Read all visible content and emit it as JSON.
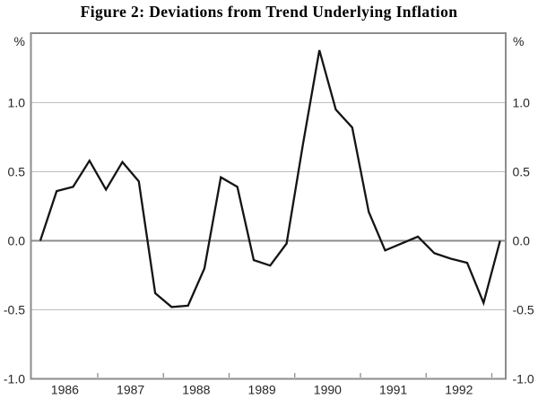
{
  "chart_data": {
    "type": "line",
    "title": "Figure 2: Deviations from Trend Underlying Inflation",
    "unit_label": "%",
    "x": [
      "1986Q1",
      "1986Q2",
      "1986Q3",
      "1986Q4",
      "1987Q1",
      "1987Q2",
      "1987Q3",
      "1987Q4",
      "1988Q1",
      "1988Q2",
      "1988Q3",
      "1988Q4",
      "1989Q1",
      "1989Q2",
      "1989Q3",
      "1989Q4",
      "1990Q1",
      "1990Q2",
      "1990Q3",
      "1990Q4",
      "1991Q1",
      "1991Q2",
      "1991Q3",
      "1991Q4",
      "1992Q1",
      "1992Q2",
      "1992Q3",
      "1992Q4",
      "1993Q1"
    ],
    "values": [
      0.0,
      0.36,
      0.39,
      0.58,
      0.37,
      0.57,
      0.43,
      -0.38,
      -0.48,
      -0.47,
      -0.2,
      0.46,
      0.39,
      -0.14,
      -0.18,
      -0.02,
      0.7,
      1.38,
      0.95,
      0.82,
      0.21,
      -0.07,
      -0.02,
      0.03,
      -0.09,
      -0.13,
      -0.16,
      -0.45,
      0.0
    ],
    "xlabel": "",
    "ylabel": "%",
    "x_year_labels": [
      "1986",
      "1987",
      "1988",
      "1989",
      "1990",
      "1991",
      "1992"
    ],
    "y_tick_labels": [
      "1.0",
      "0.5",
      "0.0",
      "-0.5",
      "-1.0"
    ],
    "y_tick_values": [
      1.0,
      0.5,
      0.0,
      -0.5,
      -1.0
    ],
    "gridline_values": [
      1.0,
      0.5,
      -0.5
    ],
    "zero_line_value": 0.0,
    "ylim": [
      -1.0,
      1.5
    ],
    "grid": "horizontal-only",
    "legend": "none",
    "colors": {
      "line": "#141414",
      "frame": "#8c8c8c",
      "zero_line": "#8c8c8c",
      "gridline": "#bfbfbf",
      "label_text": "#262626",
      "title_text": "#000000",
      "background": "#ffffff"
    }
  }
}
